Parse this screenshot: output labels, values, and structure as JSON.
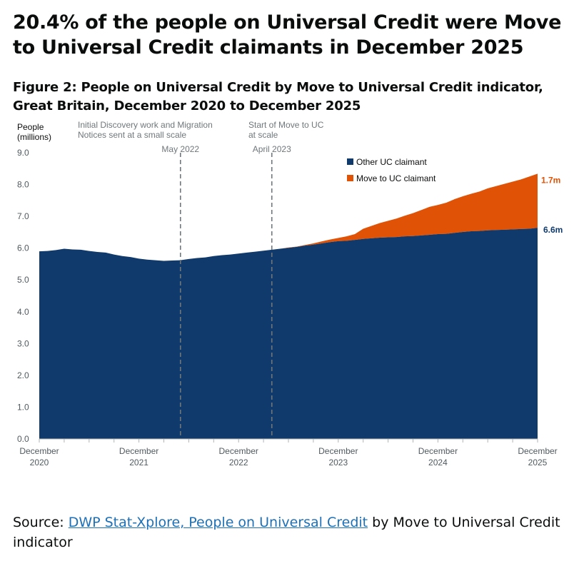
{
  "headline": "20.4% of the people on Universal Credit were Move to Universal Credit claimants in December 2025",
  "figure_title": "Figure 2: People on Universal Credit by Move to Universal Credit indicator, Great Britain, December 2020 to December 2025",
  "source": {
    "prefix": "Source: ",
    "link_text": "DWP Stat-Xplore, People on Universal Credit",
    "suffix": " by Move to Universal Credit indicator"
  },
  "colors": {
    "other": "#0f3a6b",
    "move": "#e05206",
    "ref_line": "#6f777b"
  },
  "chart_data": {
    "type": "area",
    "stacked": true,
    "ylabel": "People (millions)",
    "ylabel_lines": [
      "People",
      "(millions)"
    ],
    "ylim": [
      0,
      9
    ],
    "yticks": [
      "0.0",
      "1.0",
      "2.0",
      "3.0",
      "4.0",
      "5.0",
      "6.0",
      "7.0",
      "8.0",
      "9.0"
    ],
    "grid": false,
    "legend_position": "top-right",
    "xticks": [
      {
        "month": 0,
        "line1": "December",
        "line2": "2020"
      },
      {
        "month": 12,
        "line1": "December",
        "line2": "2021"
      },
      {
        "month": 24,
        "line1": "December",
        "line2": "2022"
      },
      {
        "month": 36,
        "line1": "December",
        "line2": "2023"
      },
      {
        "month": 48,
        "line1": "December",
        "line2": "2024"
      },
      {
        "month": 60,
        "line1": "December",
        "line2": "2025"
      }
    ],
    "x_months": [
      "Dec 2020",
      "Jan 2021",
      "Feb 2021",
      "Mar 2021",
      "Apr 2021",
      "May 2021",
      "Jun 2021",
      "Jul 2021",
      "Aug 2021",
      "Sep 2021",
      "Oct 2021",
      "Nov 2021",
      "Dec 2021",
      "Jan 2022",
      "Feb 2022",
      "Mar 2022",
      "Apr 2022",
      "May 2022",
      "Jun 2022",
      "Jul 2022",
      "Aug 2022",
      "Sep 2022",
      "Oct 2022",
      "Nov 2022",
      "Dec 2022",
      "Jan 2023",
      "Feb 2023",
      "Mar 2023",
      "Apr 2023",
      "May 2023",
      "Jun 2023",
      "Jul 2023",
      "Aug 2023",
      "Sep 2023",
      "Oct 2023",
      "Nov 2023",
      "Dec 2023",
      "Jan 2024",
      "Feb 2024",
      "Mar 2024",
      "Apr 2024",
      "May 2024",
      "Jun 2024",
      "Jul 2024",
      "Aug 2024",
      "Sep 2024",
      "Oct 2024",
      "Nov 2024",
      "Dec 2024",
      "Jan 2025",
      "Feb 2025",
      "Mar 2025",
      "Apr 2025",
      "May 2025",
      "Jun 2025",
      "Jul 2025",
      "Aug 2025",
      "Sep 2025",
      "Oct 2025",
      "Nov 2025",
      "Dec 2025"
    ],
    "series": [
      {
        "name": "Other UC claimant",
        "values": [
          5.9,
          5.91,
          5.94,
          5.98,
          5.96,
          5.95,
          5.91,
          5.88,
          5.86,
          5.8,
          5.75,
          5.72,
          5.67,
          5.64,
          5.62,
          5.6,
          5.61,
          5.62,
          5.66,
          5.69,
          5.71,
          5.75,
          5.78,
          5.8,
          5.83,
          5.86,
          5.89,
          5.92,
          5.95,
          5.98,
          6.01,
          6.04,
          6.08,
          6.11,
          6.15,
          6.19,
          6.22,
          6.23,
          6.26,
          6.29,
          6.31,
          6.33,
          6.34,
          6.35,
          6.37,
          6.38,
          6.4,
          6.42,
          6.44,
          6.45,
          6.48,
          6.51,
          6.53,
          6.54,
          6.56,
          6.57,
          6.58,
          6.59,
          6.6,
          6.61,
          6.64
        ]
      },
      {
        "name": "Move to UC claimant",
        "values": [
          0,
          0,
          0,
          0,
          0,
          0,
          0,
          0,
          0,
          0,
          0,
          0,
          0,
          0,
          0,
          0,
          0,
          0,
          0,
          0,
          0,
          0,
          0,
          0,
          0,
          0,
          0,
          0,
          0,
          0,
          0.01,
          0.01,
          0.02,
          0.04,
          0.06,
          0.08,
          0.1,
          0.14,
          0.18,
          0.32,
          0.39,
          0.46,
          0.52,
          0.58,
          0.65,
          0.72,
          0.8,
          0.88,
          0.92,
          0.98,
          1.06,
          1.12,
          1.18,
          1.24,
          1.32,
          1.38,
          1.44,
          1.5,
          1.56,
          1.64,
          1.7
        ]
      }
    ],
    "end_labels": [
      {
        "series": "Other UC claimant",
        "text": "6.6m"
      },
      {
        "series": "Move to UC claimant",
        "text": "1.7m"
      }
    ],
    "annotations": [
      {
        "month": 17,
        "lines": [
          "Initial Discovery work and Migration",
          "Notices sent at a small scale"
        ],
        "date_label": "May 2022"
      },
      {
        "month": 28,
        "lines": [
          "Start of Move to UC",
          "at scale"
        ],
        "date_label": "April 2023"
      }
    ]
  }
}
